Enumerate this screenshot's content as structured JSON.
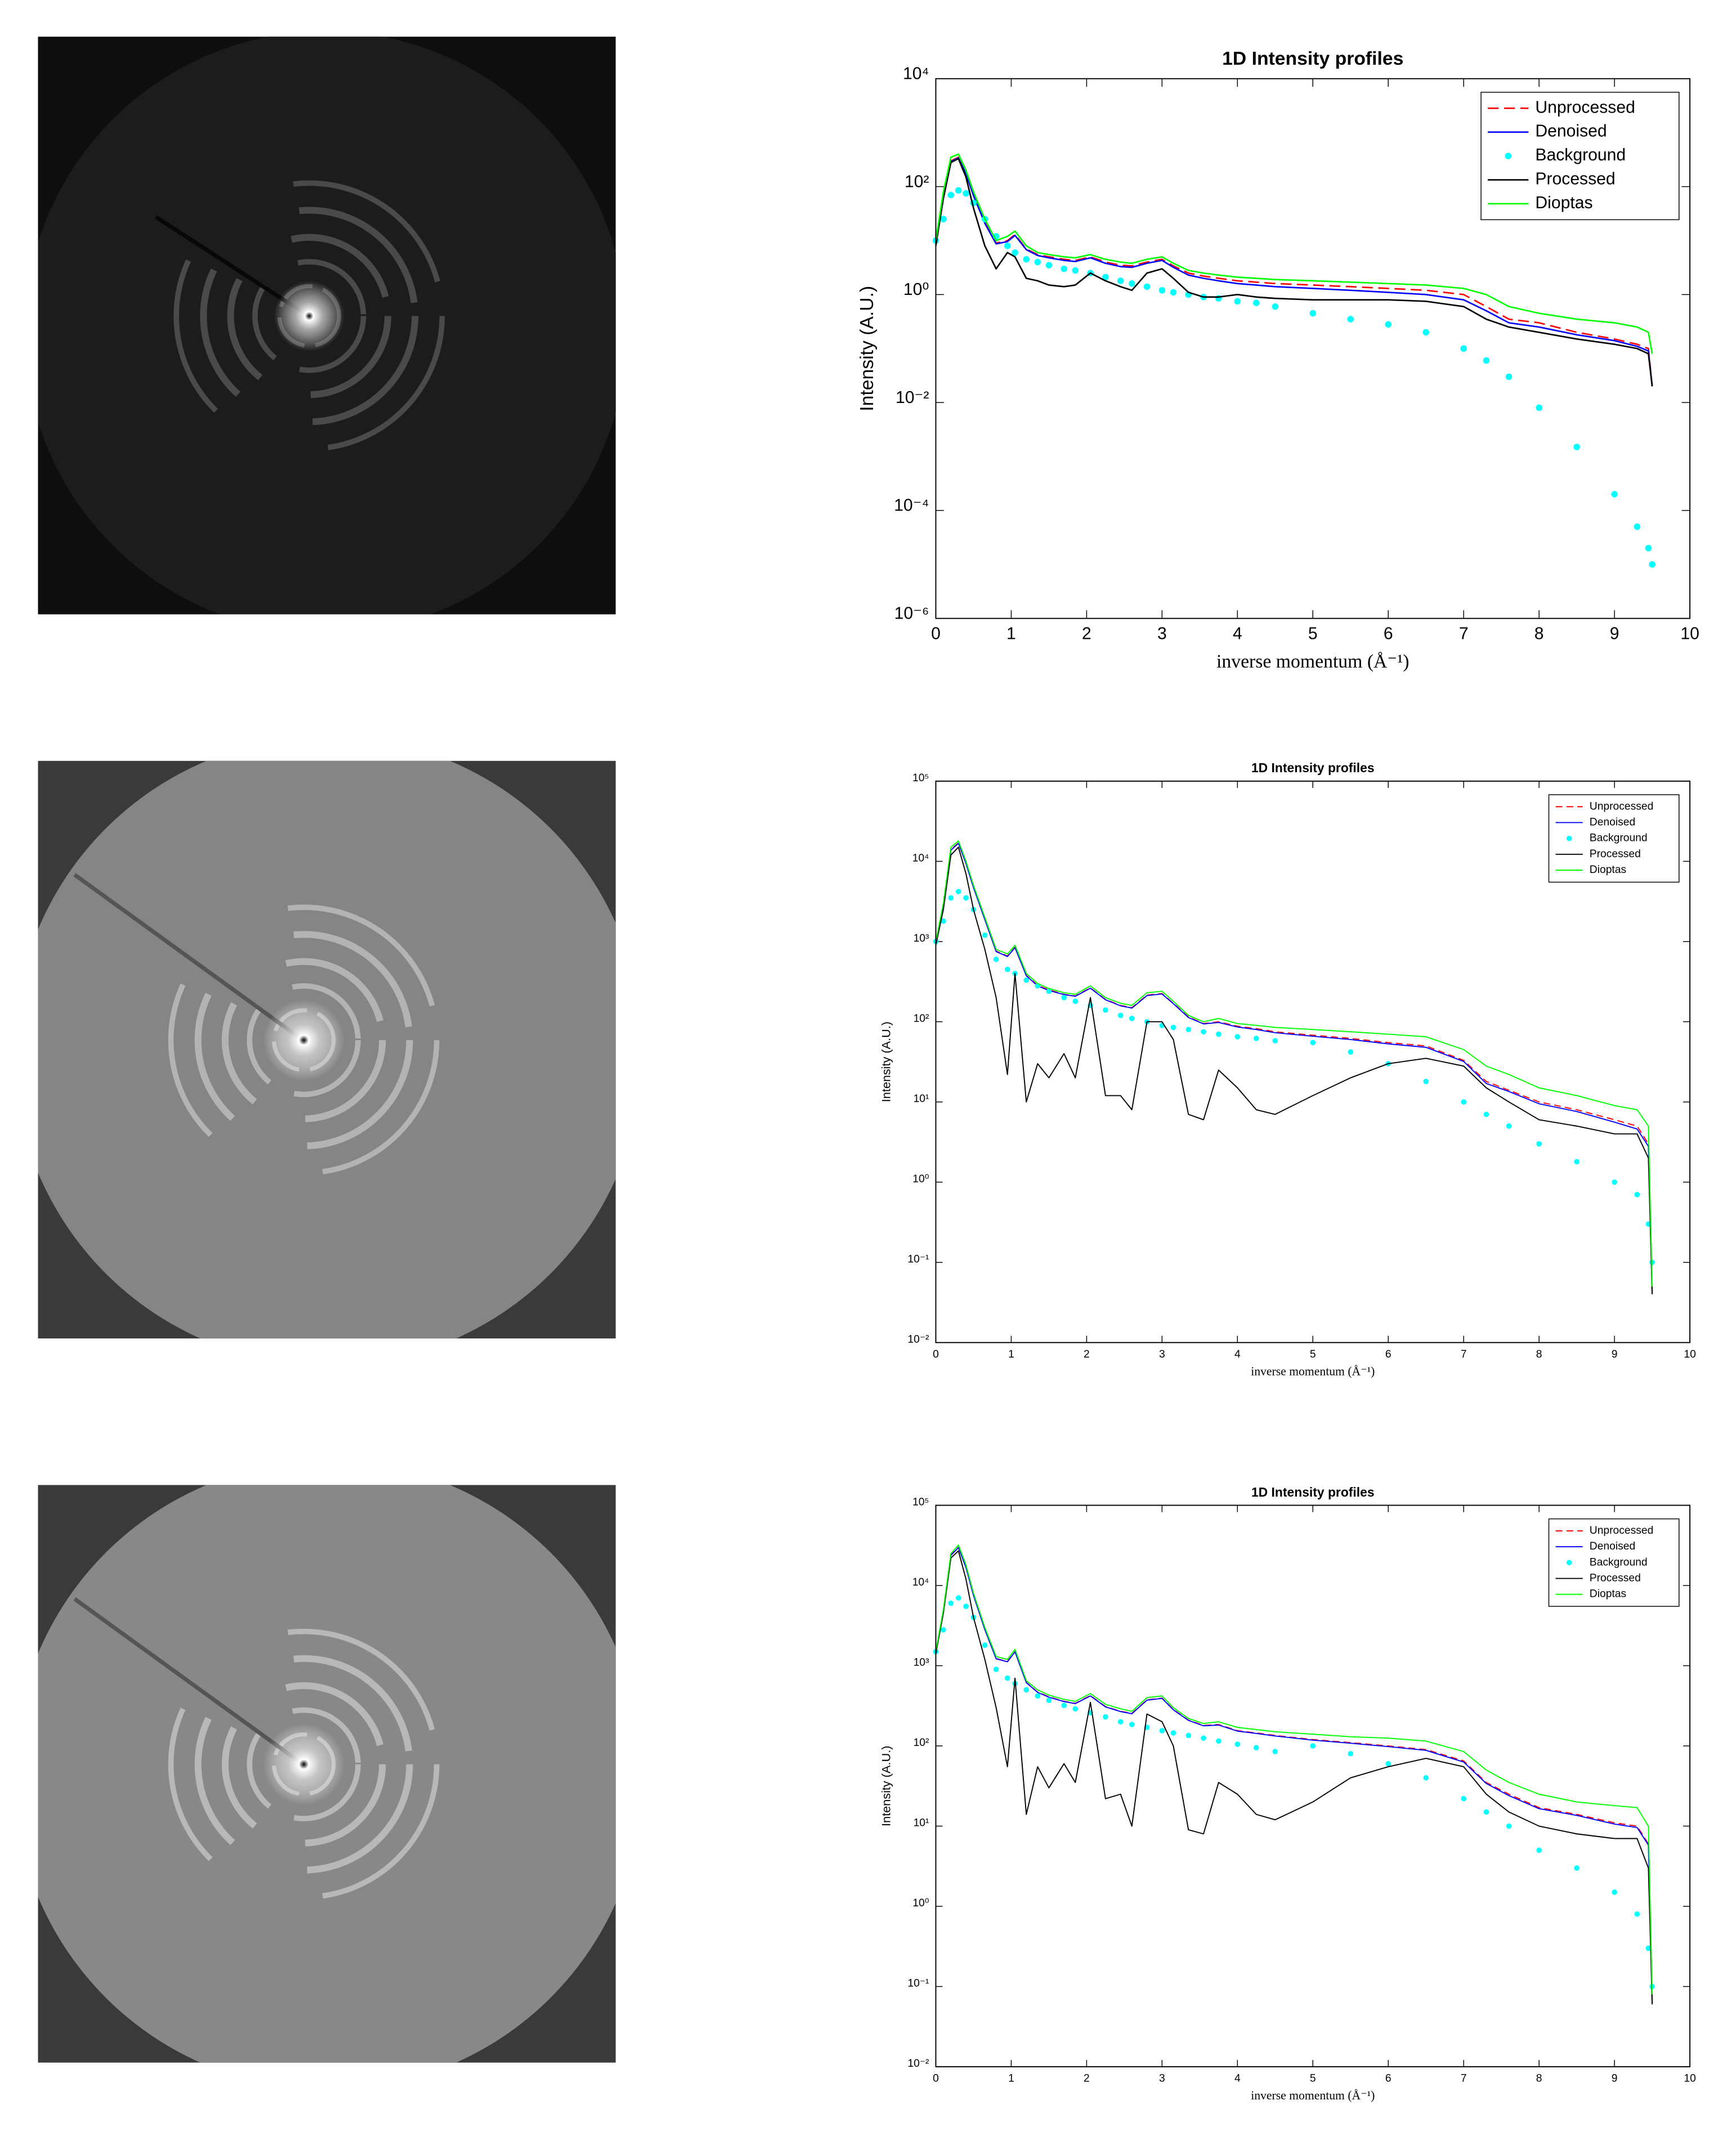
{
  "chart_data": [
    {
      "type": "line",
      "title": "1D Intensity profiles",
      "xlabel": "inverse momentum (Å⁻¹)",
      "ylabel": "Intensity (A.U.)",
      "yscale": "log",
      "grid": false,
      "legend": "northeast",
      "xlim": [
        0,
        10
      ],
      "xticks": [
        0,
        1,
        2,
        3,
        4,
        5,
        6,
        7,
        8,
        9,
        10
      ],
      "ylim": [
        1e-06,
        10000
      ],
      "yticks": [
        {
          "value": 1e-06,
          "label": "10⁻⁶"
        },
        {
          "value": 0.0001,
          "label": "10⁻⁴"
        },
        {
          "value": 0.01,
          "label": "10⁻²"
        },
        {
          "value": 1,
          "label": "10⁰"
        },
        {
          "value": 100,
          "label": "10²"
        },
        {
          "value": 10000,
          "label": "10⁴"
        }
      ],
      "x": [
        0,
        0.1,
        0.2,
        0.3,
        0.4,
        0.5,
        0.65,
        0.8,
        0.95,
        1.05,
        1.2,
        1.35,
        1.5,
        1.7,
        1.85,
        2.05,
        2.25,
        2.45,
        2.6,
        2.8,
        3.0,
        3.15,
        3.35,
        3.55,
        3.75,
        4.0,
        4.25,
        4.5,
        5.0,
        5.5,
        6.0,
        6.5,
        7.0,
        7.3,
        7.6,
        8.0,
        8.5,
        9.0,
        9.3,
        9.45,
        9.5
      ],
      "series": [
        {
          "name": "Unprocessed",
          "color": "#ff0000",
          "style": "dashed",
          "values": [
            9,
            70,
            300,
            350,
            180,
            70,
            22,
            9,
            10,
            13,
            7,
            5.5,
            5,
            4.5,
            4.3,
            5,
            4,
            3.5,
            3.4,
            4,
            4.5,
            3.4,
            2.5,
            2.2,
            2,
            1.8,
            1.7,
            1.6,
            1.5,
            1.4,
            1.3,
            1.2,
            1,
            0.6,
            0.35,
            0.3,
            0.2,
            0.15,
            0.12,
            0.1,
            0.02
          ]
        },
        {
          "name": "Denoised",
          "color": "#0000ff",
          "style": "solid",
          "values": [
            8.8,
            68,
            290,
            340,
            175,
            68,
            21,
            8.7,
            9.6,
            12.5,
            6.8,
            5.3,
            4.8,
            4.3,
            4.1,
            4.8,
            3.8,
            3.3,
            3.2,
            3.8,
            4.3,
            3.2,
            2.3,
            2,
            1.8,
            1.6,
            1.5,
            1.4,
            1.3,
            1.2,
            1.1,
            1,
            0.8,
            0.5,
            0.3,
            0.25,
            0.18,
            0.14,
            0.11,
            0.09,
            0.02
          ]
        },
        {
          "name": "Background",
          "color": "#00ffff",
          "style": "markers",
          "values": [
            10,
            25,
            70,
            85,
            75,
            50,
            25,
            12,
            8,
            6,
            4.5,
            4,
            3.5,
            3,
            2.8,
            2.5,
            2.1,
            1.8,
            1.6,
            1.4,
            1.2,
            1.1,
            1,
            0.9,
            0.85,
            0.75,
            0.7,
            0.6,
            0.45,
            0.35,
            0.28,
            0.2,
            0.1,
            0.06,
            0.03,
            0.008,
            0.0015,
            0.0002,
            5e-05,
            2e-05,
            1e-05
          ]
        },
        {
          "name": "Processed",
          "color": "#000000",
          "style": "solid",
          "values": [
            8,
            60,
            280,
            330,
            150,
            40,
            8,
            3,
            6,
            5,
            2,
            1.8,
            1.5,
            1.4,
            1.5,
            2.5,
            1.8,
            1.4,
            1.2,
            2.5,
            3,
            2,
            1.1,
            0.9,
            0.9,
            1,
            0.9,
            0.85,
            0.8,
            0.8,
            0.8,
            0.75,
            0.6,
            0.35,
            0.25,
            0.2,
            0.15,
            0.12,
            0.1,
            0.08,
            0.02
          ]
        },
        {
          "name": "Dioptas",
          "color": "#00ff00",
          "style": "solid",
          "values": [
            10,
            80,
            350,
            400,
            200,
            80,
            25,
            10,
            12,
            15,
            8,
            6,
            5.5,
            5,
            4.8,
            5.5,
            4.5,
            4,
            3.8,
            4.5,
            5,
            3.8,
            2.8,
            2.5,
            2.3,
            2.1,
            2,
            1.9,
            1.8,
            1.7,
            1.6,
            1.5,
            1.3,
            1,
            0.6,
            0.45,
            0.35,
            0.3,
            0.25,
            0.2,
            0.08
          ]
        }
      ]
    },
    {
      "type": "line",
      "title": "1D Intensity profiles",
      "xlabel": "inverse momentum (Å⁻¹)",
      "ylabel": "Intensity (A.U.)",
      "yscale": "log",
      "grid": false,
      "legend": "northeast",
      "xlim": [
        0,
        10
      ],
      "xticks": [
        0,
        1,
        2,
        3,
        4,
        5,
        6,
        7,
        8,
        9,
        10
      ],
      "ylim": [
        0.01,
        100000
      ],
      "yticks": [
        {
          "value": 0.01,
          "label": "10⁻²"
        },
        {
          "value": 0.1,
          "label": "10⁻¹"
        },
        {
          "value": 1,
          "label": "10⁰"
        },
        {
          "value": 10,
          "label": "10¹"
        },
        {
          "value": 100,
          "label": "10²"
        },
        {
          "value": 1000,
          "label": "10³"
        },
        {
          "value": 10000,
          "label": "10⁴"
        },
        {
          "value": 100000,
          "label": "10⁵"
        }
      ],
      "x": [
        0,
        0.1,
        0.2,
        0.3,
        0.4,
        0.5,
        0.65,
        0.8,
        0.95,
        1.05,
        1.2,
        1.35,
        1.5,
        1.7,
        1.85,
        2.05,
        2.25,
        2.45,
        2.6,
        2.8,
        3.0,
        3.15,
        3.35,
        3.55,
        3.75,
        4.0,
        4.25,
        4.5,
        5.0,
        5.5,
        6.0,
        6.5,
        7.0,
        7.3,
        7.6,
        8.0,
        8.5,
        9.0,
        9.3,
        9.45,
        9.5
      ],
      "series": [
        {
          "name": "Unprocessed",
          "color": "#ff0000",
          "style": "dashed",
          "values": [
            950,
            2800,
            14000,
            17000,
            9500,
            4800,
            1900,
            760,
            660,
            850,
            380,
            285,
            250,
            220,
            210,
            265,
            190,
            160,
            150,
            215,
            225,
            170,
            115,
            95,
            100,
            88,
            82,
            75,
            68,
            62,
            55,
            50,
            33,
            18,
            14,
            10,
            8,
            6,
            5,
            3,
            0.04
          ]
        },
        {
          "name": "Denoised",
          "color": "#0000ff",
          "style": "solid",
          "values": [
            940,
            2750,
            13800,
            16800,
            9400,
            4700,
            1880,
            750,
            650,
            840,
            375,
            280,
            245,
            218,
            208,
            262,
            188,
            158,
            148,
            212,
            222,
            168,
            113,
            94,
            98,
            86,
            80,
            73,
            66,
            60,
            53,
            48,
            32,
            17,
            13.5,
            9.5,
            7.6,
            5.6,
            4.6,
            2.8,
            0.04
          ]
        },
        {
          "name": "Background",
          "color": "#00ffff",
          "style": "markers",
          "values": [
            1000,
            1800,
            3500,
            4200,
            3500,
            2500,
            1200,
            600,
            450,
            400,
            330,
            280,
            240,
            200,
            180,
            160,
            140,
            120,
            110,
            100,
            90,
            85,
            80,
            75,
            70,
            65,
            62,
            58,
            55,
            42,
            30,
            18,
            10,
            7,
            5,
            3,
            1.8,
            1,
            0.7,
            0.3,
            0.1
          ]
        },
        {
          "name": "Processed",
          "color": "#000000",
          "style": "solid",
          "values": [
            900,
            2500,
            12000,
            15000,
            7000,
            2500,
            800,
            200,
            22,
            400,
            10,
            30,
            20,
            40,
            20,
            200,
            12,
            12,
            8,
            100,
            100,
            60,
            7,
            6,
            25,
            15,
            8,
            7,
            12,
            20,
            30,
            35,
            28,
            15,
            10,
            6,
            5,
            4,
            4,
            2,
            0.04
          ]
        },
        {
          "name": "Dioptas",
          "color": "#00ff00",
          "style": "solid",
          "values": [
            1000,
            3000,
            15000,
            18000,
            10000,
            5000,
            2000,
            800,
            700,
            900,
            400,
            300,
            260,
            230,
            220,
            280,
            200,
            170,
            160,
            230,
            240,
            180,
            120,
            100,
            110,
            95,
            90,
            85,
            80,
            75,
            70,
            65,
            45,
            28,
            22,
            15,
            12,
            9,
            8,
            5,
            0.05
          ]
        }
      ]
    },
    {
      "type": "line",
      "title": "1D Intensity profiles",
      "xlabel": "inverse momentum (Å⁻¹)",
      "ylabel": "Intensity (A.U.)",
      "yscale": "log",
      "grid": false,
      "legend": "northeast",
      "xlim": [
        0,
        10
      ],
      "xticks": [
        0,
        1,
        2,
        3,
        4,
        5,
        6,
        7,
        8,
        9,
        10
      ],
      "ylim": [
        0.01,
        100000
      ],
      "yticks": [
        {
          "value": 0.01,
          "label": "10⁻²"
        },
        {
          "value": 0.1,
          "label": "10⁻¹"
        },
        {
          "value": 1,
          "label": "10⁰"
        },
        {
          "value": 10,
          "label": "10¹"
        },
        {
          "value": 100,
          "label": "10²"
        },
        {
          "value": 1000,
          "label": "10³"
        },
        {
          "value": 10000,
          "label": "10⁴"
        },
        {
          "value": 100000,
          "label": "10⁵"
        }
      ],
      "x": [
        0,
        0.1,
        0.2,
        0.3,
        0.4,
        0.5,
        0.65,
        0.8,
        0.95,
        1.05,
        1.2,
        1.35,
        1.5,
        1.7,
        1.85,
        2.05,
        2.25,
        2.45,
        2.6,
        2.8,
        3.0,
        3.15,
        3.35,
        3.55,
        3.75,
        4.0,
        4.25,
        4.5,
        5.0,
        5.5,
        6.0,
        6.5,
        7.0,
        7.3,
        7.6,
        8.0,
        8.5,
        9.0,
        9.3,
        9.45,
        9.5
      ],
      "series": [
        {
          "name": "Unprocessed",
          "color": "#ff0000",
          "style": "dashed",
          "values": [
            1450,
            4800,
            24000,
            30000,
            17000,
            7600,
            2850,
            1230,
            1130,
            1500,
            620,
            470,
            410,
            360,
            340,
            425,
            310,
            270,
            255,
            375,
            395,
            285,
            210,
            180,
            185,
            155,
            145,
            135,
            120,
            110,
            100,
            90,
            65,
            35,
            25,
            17,
            14,
            11,
            10,
            6,
            0.06
          ]
        },
        {
          "name": "Denoised",
          "color": "#0000ff",
          "style": "solid",
          "values": [
            1440,
            4750,
            23800,
            29700,
            16800,
            7500,
            2820,
            1220,
            1120,
            1490,
            615,
            465,
            405,
            357,
            337,
            420,
            307,
            268,
            252,
            372,
            392,
            282,
            208,
            178,
            182,
            153,
            143,
            133,
            118,
            108,
            98,
            88,
            63,
            34,
            24,
            16.5,
            13.6,
            10.6,
            9.6,
            5.8,
            0.06
          ]
        },
        {
          "name": "Background",
          "color": "#00ffff",
          "style": "markers",
          "values": [
            1500,
            2800,
            6000,
            7000,
            5500,
            4000,
            1800,
            900,
            700,
            600,
            500,
            420,
            370,
            320,
            290,
            260,
            230,
            200,
            185,
            170,
            155,
            145,
            135,
            125,
            115,
            105,
            95,
            85,
            100,
            80,
            60,
            40,
            22,
            15,
            10,
            5,
            3,
            1.5,
            0.8,
            0.3,
            0.1
          ]
        },
        {
          "name": "Processed",
          "color": "#000000",
          "style": "solid",
          "values": [
            1400,
            4500,
            22000,
            27000,
            12000,
            4000,
            1200,
            300,
            55,
            700,
            14,
            55,
            30,
            60,
            35,
            350,
            22,
            25,
            10,
            250,
            200,
            100,
            9,
            8,
            35,
            25,
            14,
            12,
            20,
            40,
            55,
            70,
            55,
            25,
            15,
            10,
            8,
            7,
            7,
            3,
            0.06
          ]
        },
        {
          "name": "Dioptas",
          "color": "#00ff00",
          "style": "solid",
          "values": [
            1500,
            5000,
            25000,
            32000,
            18000,
            8000,
            3000,
            1300,
            1200,
            1600,
            650,
            500,
            430,
            380,
            360,
            450,
            330,
            290,
            270,
            400,
            420,
            300,
            220,
            190,
            200,
            170,
            160,
            150,
            140,
            130,
            125,
            115,
            85,
            50,
            35,
            25,
            20,
            18,
            17,
            10,
            0.08
          ]
        }
      ]
    }
  ]
}
